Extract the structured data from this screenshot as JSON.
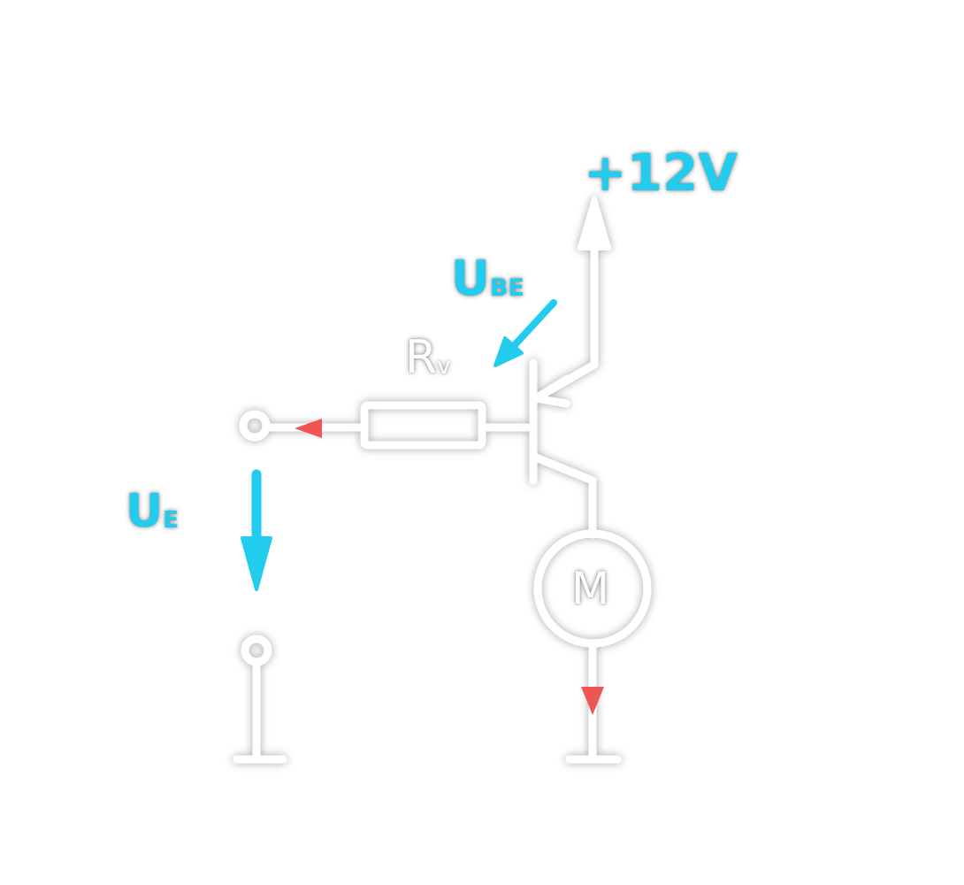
{
  "colors": {
    "wire": "#ffffff",
    "accent_label": "#22ccee",
    "current_arrow": "#f05555",
    "shadow": "#000000"
  },
  "labels": {
    "supply": "+12V",
    "resistor_main": "R",
    "resistor_sub": "v",
    "ube_main": "U",
    "ube_sub": "BE",
    "ue_main": "U",
    "ue_sub": "E",
    "motor": "M"
  }
}
